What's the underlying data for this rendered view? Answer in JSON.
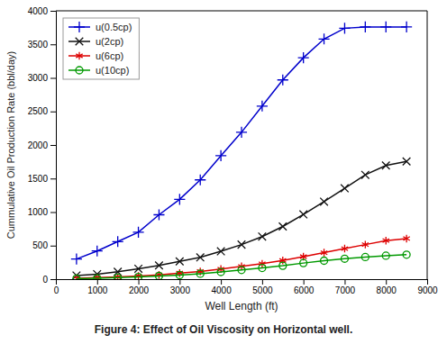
{
  "chart_data": {
    "type": "line",
    "title": "Figure 4: Effect of Oil Viscosity on Horizontal well.",
    "xlabel": "Well Length (ft)",
    "ylabel": "Cummulative Oil Production Rate (bbl/day)",
    "x": [
      500,
      1000,
      1500,
      2000,
      2500,
      3000,
      3500,
      4000,
      4500,
      5000,
      5500,
      6000,
      6500,
      7000,
      7500,
      8000,
      8500
    ],
    "series": [
      {
        "name": "u(0.5cp)",
        "color": "#0000cc",
        "marker": "plus",
        "values": [
          300,
          420,
          560,
          700,
          960,
          1190,
          1480,
          1840,
          2190,
          2580,
          2970,
          3300,
          3580,
          3740,
          3760,
          3760,
          3760
        ]
      },
      {
        "name": "u(2cp)",
        "color": "#111111",
        "marker": "x",
        "values": [
          55,
          75,
          110,
          155,
          205,
          265,
          325,
          415,
          515,
          635,
          785,
          965,
          1155,
          1355,
          1555,
          1695,
          1755
        ]
      },
      {
        "name": "u(6cp)",
        "color": "#dd0000",
        "marker": "star",
        "values": [
          12,
          22,
          32,
          48,
          65,
          90,
          115,
          150,
          190,
          230,
          278,
          335,
          395,
          455,
          515,
          575,
          605
        ]
      },
      {
        "name": "u(10cp)",
        "color": "#009900",
        "marker": "circle",
        "values": [
          8,
          13,
          22,
          32,
          47,
          62,
          82,
          107,
          137,
          167,
          200,
          240,
          275,
          305,
          330,
          350,
          365
        ]
      }
    ],
    "xlim": [
      0,
      9000
    ],
    "ylim": [
      0,
      4000
    ],
    "xticks": [
      0,
      1000,
      2000,
      3000,
      4000,
      5000,
      6000,
      7000,
      8000,
      9000
    ],
    "yticks": [
      0,
      500,
      1000,
      1500,
      2000,
      2500,
      3000,
      3500,
      4000
    ],
    "grid": false,
    "legend": "upper left"
  }
}
